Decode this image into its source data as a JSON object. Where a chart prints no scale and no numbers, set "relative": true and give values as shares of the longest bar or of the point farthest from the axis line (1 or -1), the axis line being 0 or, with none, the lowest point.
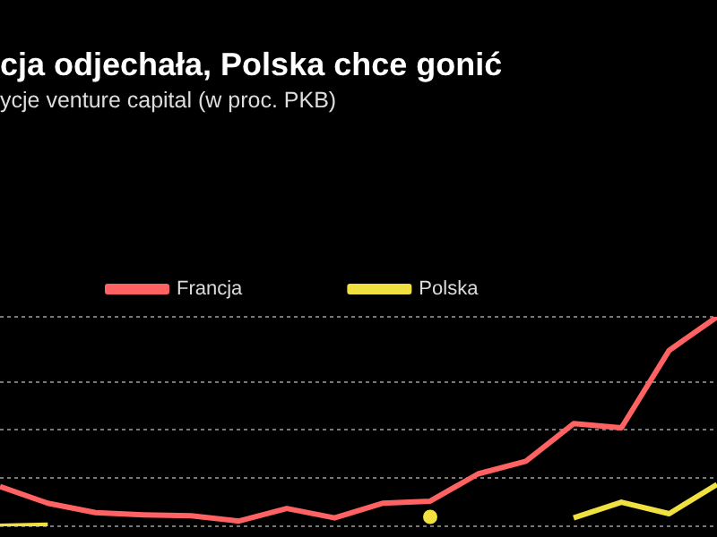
{
  "chart_data": {
    "type": "line",
    "title": "cja odjechała, Polska chce gonić",
    "subtitle": "ycje venture capital (w proc. PKB)",
    "relative": true,
    "grid": "y",
    "legend": "top left",
    "marker": "none",
    "categories": [
      null,
      null,
      null,
      null,
      null,
      null,
      null,
      null,
      null,
      null,
      null,
      null,
      null,
      null,
      null,
      null
    ],
    "series": [
      {
        "name": "Francja",
        "color": "#ff6262",
        "values": [
          0.19,
          0.11,
          0.065,
          0.055,
          0.05,
          0.025,
          0.085,
          0.04,
          0.11,
          0.12,
          0.25,
          0.31,
          0.49,
          0.47,
          0.84,
          1
        ]
      },
      {
        "name": "Polska",
        "color": "#f0e040",
        "values": [
          0,
          0.005,
          null,
          null,
          null,
          null,
          null,
          null,
          null,
          0.045,
          null,
          null,
          0.04,
          0.115,
          0.06,
          0.2
        ]
      }
    ]
  }
}
